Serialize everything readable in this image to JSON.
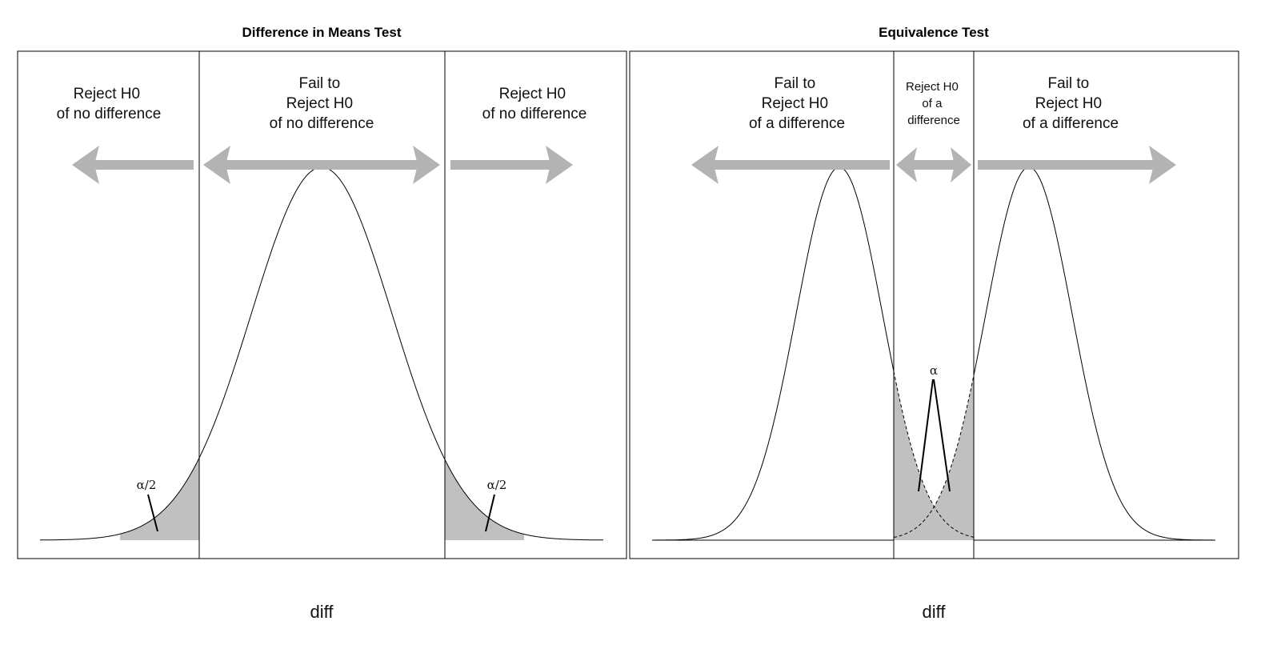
{
  "panels": [
    {
      "title": "Difference in Means Test",
      "regions": [
        {
          "lines": [
            "Reject H0",
            "of no difference"
          ]
        },
        {
          "lines": [
            "Fail to",
            "Reject H0",
            "of no difference"
          ]
        },
        {
          "lines": [
            "Reject H0",
            "of no difference"
          ]
        }
      ],
      "tail_labels": [
        "α/2",
        "α/2"
      ],
      "xlabel": "diff"
    },
    {
      "title": "Equivalence Test",
      "regions": [
        {
          "lines": [
            "Fail to",
            "Reject H0",
            "of a difference"
          ]
        },
        {
          "lines": [
            "Reject H0",
            "of a",
            "difference"
          ]
        },
        {
          "lines": [
            "Fail to",
            "Reject H0",
            "of a difference"
          ]
        }
      ],
      "tail_labels": [
        "α"
      ],
      "xlabel": "diff"
    }
  ],
  "colors": {
    "arrow": "#b3b3b3",
    "shade": "#c0c0c0",
    "line": "#000000"
  }
}
